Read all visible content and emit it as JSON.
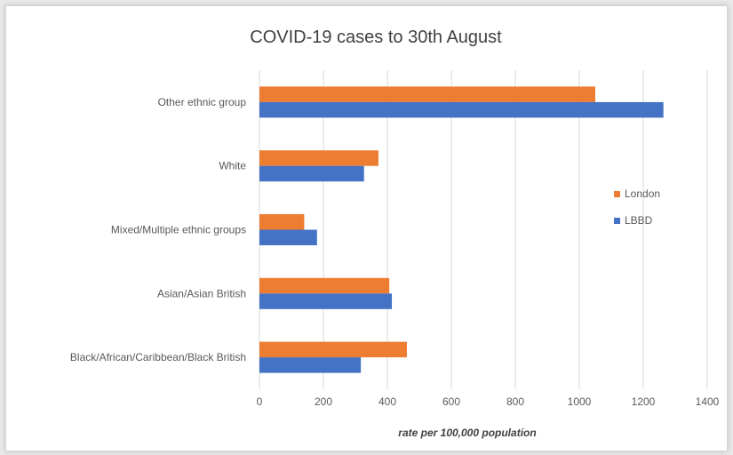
{
  "chart_data": {
    "type": "bar",
    "orientation": "horizontal",
    "title": "COVID-19 cases to 30th August",
    "xlabel": "rate per 100,000 population",
    "ylabel": "",
    "categories": [
      "Other ethnic group",
      "White",
      "Mixed/Multiple ethnic groups",
      "Asian/Asian British",
      "Black/African/Caribbean/Black British"
    ],
    "series": [
      {
        "name": "London",
        "color": "#ED7D31",
        "values": [
          1050,
          372,
          140,
          406,
          461
        ]
      },
      {
        "name": "LBBD",
        "color": "#4472C4",
        "values": [
          1263,
          327,
          180,
          414,
          317
        ]
      }
    ],
    "xlim": [
      0,
      1400
    ],
    "xticks": [
      0,
      200,
      400,
      600,
      800,
      1000,
      1200,
      1400
    ],
    "grid": "vertical",
    "legend_position": "right"
  }
}
